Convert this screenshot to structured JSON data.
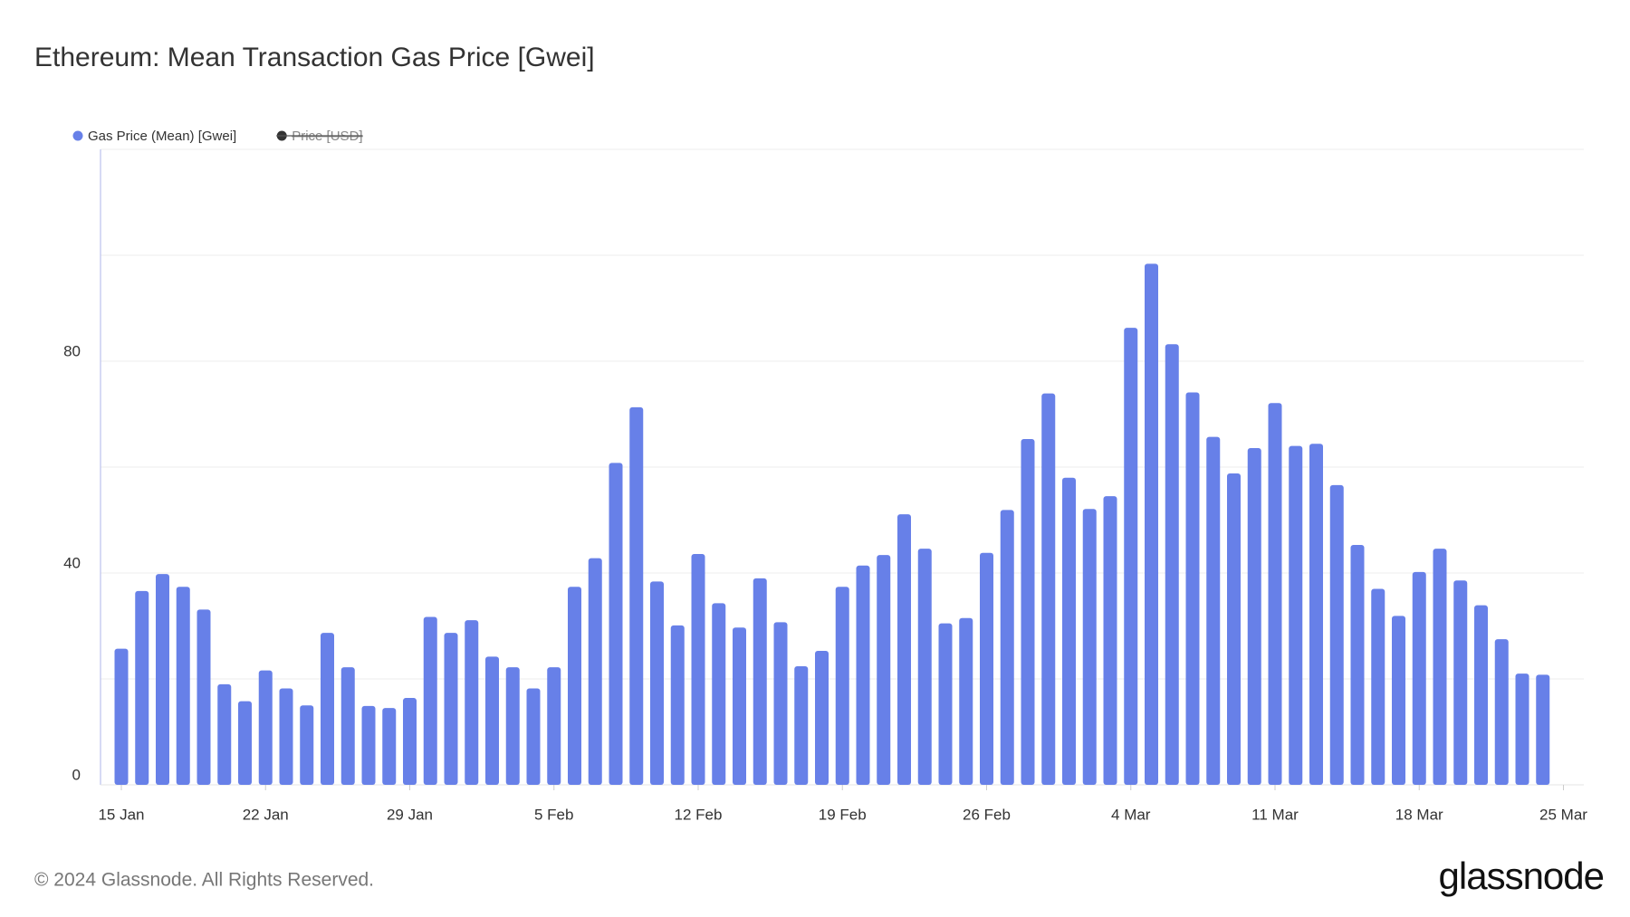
{
  "chart_data": {
    "type": "bar",
    "title": "Ethereum: Mean Transaction Gas Price [Gwei]",
    "series": [
      {
        "name": "Gas Price (Mean) [Gwei]",
        "color": "#6780e8",
        "values": [
          25.7,
          36.6,
          39.8,
          37.4,
          33.1,
          19.0,
          15.8,
          21.6,
          18.2,
          15.0,
          28.7,
          22.2,
          14.9,
          14.5,
          16.4,
          31.7,
          28.7,
          31.1,
          24.2,
          22.2,
          18.2,
          22.2,
          37.4,
          42.8,
          60.8,
          71.3,
          38.4,
          30.1,
          43.6,
          34.3,
          29.7,
          39.0,
          30.7,
          22.4,
          25.3,
          37.4,
          41.4,
          43.4,
          51.1,
          44.6,
          30.5,
          31.5,
          43.8,
          51.9,
          65.3,
          73.9,
          58.0,
          52.1,
          54.5,
          86.3,
          98.4,
          83.2,
          74.1,
          65.7,
          58.8,
          63.6,
          72.1,
          64.0,
          64.4,
          56.6,
          45.3,
          37.0,
          31.9,
          40.2,
          44.6,
          38.6,
          33.9,
          27.5,
          21.0,
          20.8,
          null
        ]
      }
    ],
    "hidden_series": [
      {
        "name": "Price [USD]",
        "color": "#333333"
      }
    ],
    "categories": [
      "15 Jan",
      null,
      null,
      null,
      null,
      null,
      null,
      "22 Jan",
      null,
      null,
      null,
      null,
      null,
      null,
      "29 Jan",
      null,
      null,
      null,
      null,
      null,
      null,
      "5 Feb",
      null,
      null,
      null,
      null,
      null,
      null,
      "12 Feb",
      null,
      null,
      null,
      null,
      null,
      null,
      "19 Feb",
      null,
      null,
      null,
      null,
      null,
      null,
      "26 Feb",
      null,
      null,
      null,
      null,
      null,
      null,
      "4 Mar",
      null,
      null,
      null,
      null,
      null,
      null,
      "11 Mar",
      null,
      null,
      null,
      null,
      null,
      null,
      "18 Mar",
      null,
      null,
      null,
      null,
      null,
      null,
      "25 Mar"
    ],
    "ylim": [
      0,
      120
    ],
    "yticks": [
      0,
      {
        "value": 20,
        "label": null
      },
      40,
      {
        "value": 60,
        "label": null
      },
      80,
      {
        "value": 100,
        "label": null
      },
      {
        "value": 120,
        "label": null
      }
    ],
    "grid": true,
    "legend": "top-left",
    "footer": "© 2024 Glassnode. All Rights Reserved.",
    "brand": "glassnode"
  }
}
